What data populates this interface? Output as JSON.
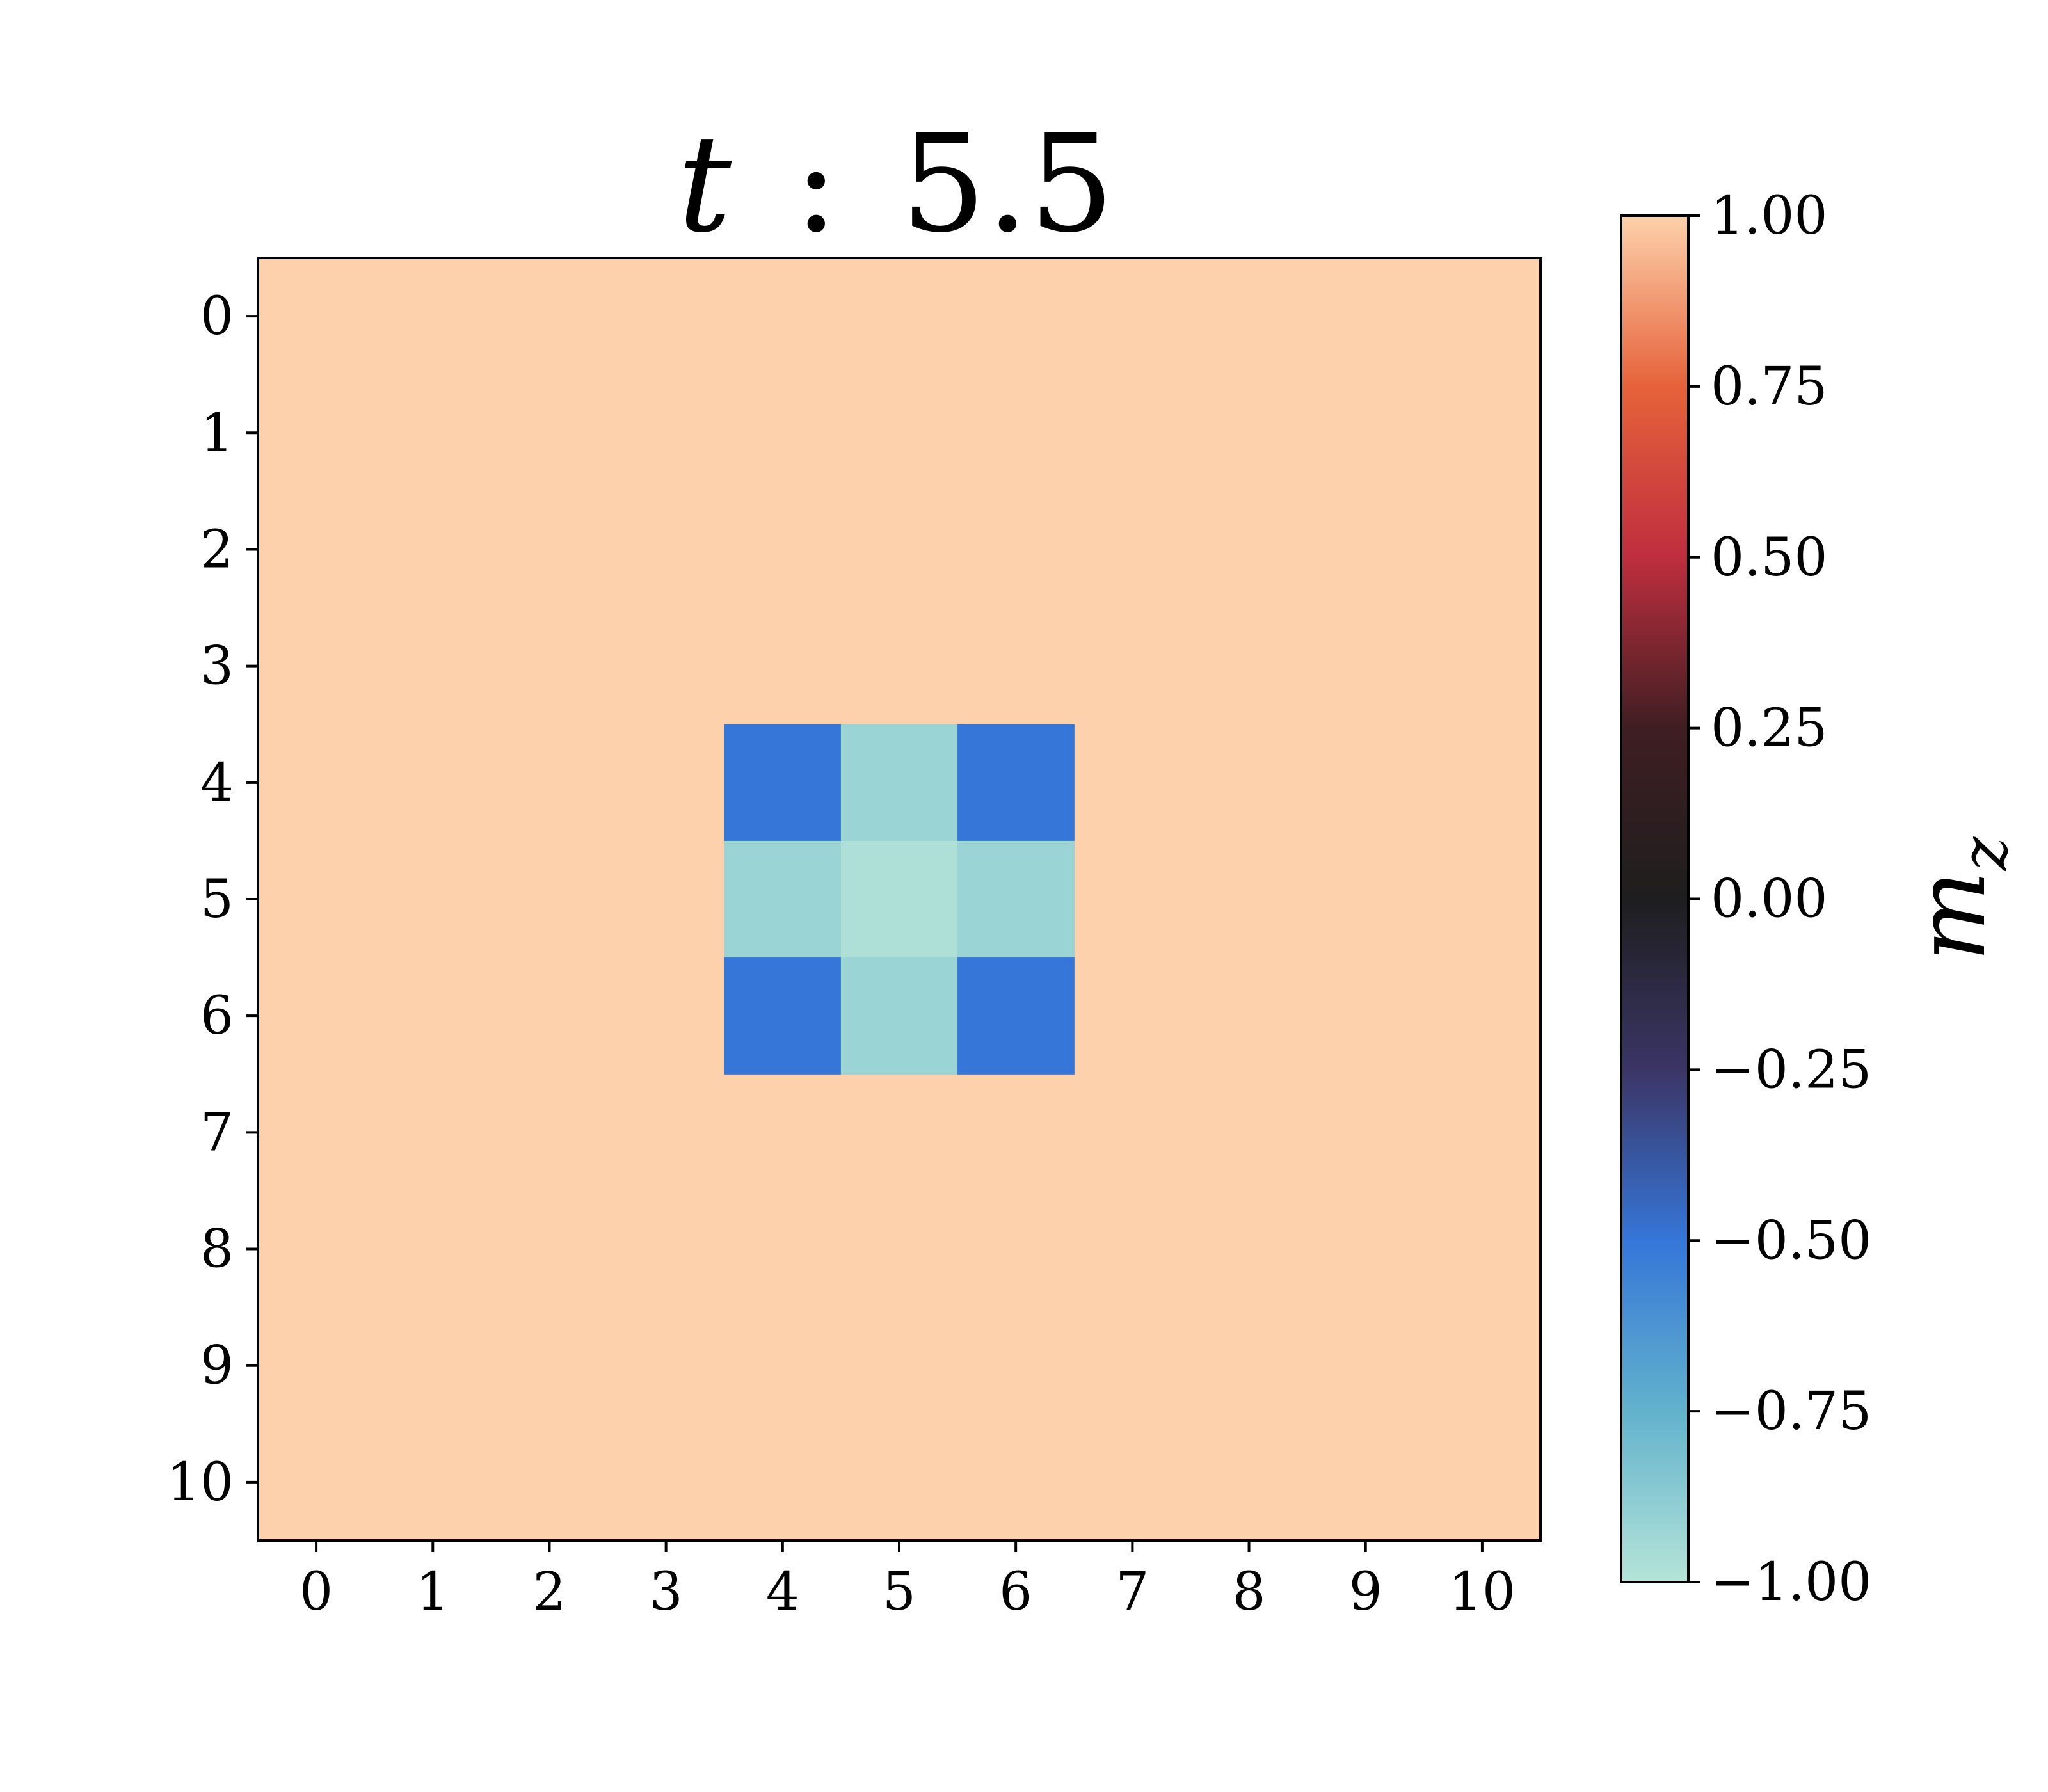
{
  "chart_data": {
    "type": "heatmap",
    "title": {
      "variable": "t",
      "separator": ":",
      "value": "5.5"
    },
    "x_ticks": [
      "0",
      "1",
      "2",
      "3",
      "4",
      "5",
      "6",
      "7",
      "8",
      "9",
      "10"
    ],
    "y_ticks": [
      "0",
      "1",
      "2",
      "3",
      "4",
      "5",
      "6",
      "7",
      "8",
      "9",
      "10"
    ],
    "xlim": [
      -0.5,
      10.5
    ],
    "ylim": [
      10.5,
      -0.5
    ],
    "grid": false,
    "background_value": 1.0,
    "cells": [
      {
        "row": 4,
        "col": 4,
        "value": -0.5
      },
      {
        "row": 4,
        "col": 5,
        "value": -0.92
      },
      {
        "row": 4,
        "col": 6,
        "value": -0.5
      },
      {
        "row": 5,
        "col": 4,
        "value": -0.92
      },
      {
        "row": 5,
        "col": 5,
        "value": -0.98
      },
      {
        "row": 5,
        "col": 6,
        "value": -0.92
      },
      {
        "row": 6,
        "col": 4,
        "value": -0.5
      },
      {
        "row": 6,
        "col": 5,
        "value": -0.92
      },
      {
        "row": 6,
        "col": 6,
        "value": -0.5
      }
    ],
    "colorbar": {
      "label_base": "m",
      "label_sub": "z",
      "range": [
        -1.0,
        1.0
      ],
      "ticks": [
        {
          "value": 1.0,
          "label": "1.00"
        },
        {
          "value": 0.75,
          "label": "0.75"
        },
        {
          "value": 0.5,
          "label": "0.50"
        },
        {
          "value": 0.25,
          "label": "0.25"
        },
        {
          "value": 0.0,
          "label": "0.00"
        },
        {
          "value": -0.25,
          "label": "−0.25"
        },
        {
          "value": -0.5,
          "label": "−0.50"
        },
        {
          "value": -0.75,
          "label": "−0.75"
        },
        {
          "value": -1.0,
          "label": "−1.00"
        }
      ],
      "colormap": [
        {
          "value": -1.0,
          "color": "#b5e4d8"
        },
        {
          "value": -0.75,
          "color": "#62b2cc"
        },
        {
          "value": -0.5,
          "color": "#3576d8"
        },
        {
          "value": -0.25,
          "color": "#3b3566"
        },
        {
          "value": 0.0,
          "color": "#1e1e1e"
        },
        {
          "value": 0.25,
          "color": "#3f1e22"
        },
        {
          "value": 0.5,
          "color": "#bf2e3e"
        },
        {
          "value": 0.75,
          "color": "#e6623a"
        },
        {
          "value": 1.0,
          "color": "#fdd1ab"
        }
      ]
    }
  }
}
